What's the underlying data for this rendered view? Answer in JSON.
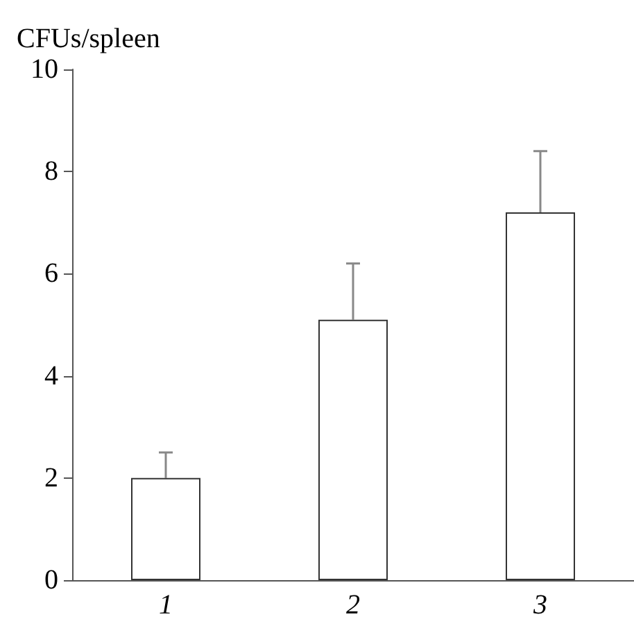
{
  "chart_data": {
    "type": "bar",
    "ylabel": "CFUs/spleen",
    "categories": [
      "1",
      "2",
      "3"
    ],
    "values": [
      2.0,
      5.1,
      7.2
    ],
    "color": "#ffffff",
    "errors": [
      [
        2.0,
        2.5
      ],
      [
        5.1,
        6.2
      ],
      [
        7.2,
        8.4
      ]
    ],
    "ylim": [
      0,
      10
    ],
    "yticks": [
      0,
      2,
      4,
      6,
      8,
      10
    ],
    "grid": false
  }
}
